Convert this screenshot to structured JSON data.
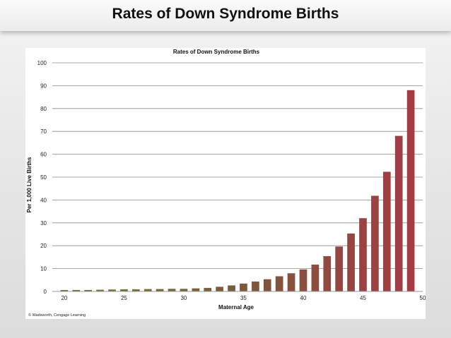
{
  "slide": {
    "title": "Rates of Down Syndrome Births"
  },
  "copyright": "© Wadsworth, Cengage Learning",
  "chart_data": {
    "type": "bar",
    "title": "Rates of Down Syndrome Births",
    "xlabel": "Maternal Age",
    "ylabel": "Per 1,000 Live Births",
    "xlim": [
      19,
      50
    ],
    "ylim": [
      0,
      100
    ],
    "x_ticks": [
      20,
      25,
      30,
      35,
      40,
      45,
      50
    ],
    "y_ticks": [
      0,
      10,
      20,
      30,
      40,
      50,
      60,
      70,
      80,
      90,
      100
    ],
    "grid": true,
    "legend": "none",
    "x": [
      20,
      21,
      22,
      23,
      24,
      25,
      26,
      27,
      28,
      29,
      30,
      31,
      32,
      33,
      34,
      35,
      36,
      37,
      38,
      39,
      40,
      41,
      42,
      43,
      44,
      45,
      46,
      47,
      48,
      49
    ],
    "values": [
      0.6,
      0.6,
      0.6,
      0.7,
      0.8,
      0.9,
      0.9,
      1.0,
      1.0,
      1.1,
      1.1,
      1.3,
      1.5,
      2.0,
      2.6,
      3.4,
      4.3,
      5.3,
      6.6,
      7.9,
      9.6,
      11.7,
      15.4,
      19.6,
      25.3,
      32.0,
      41.8,
      52.3,
      68.0,
      88.0
    ],
    "colors": {
      "start": "#6f7a30",
      "mid": "#7a5a3a",
      "end": "#a63a45"
    }
  }
}
